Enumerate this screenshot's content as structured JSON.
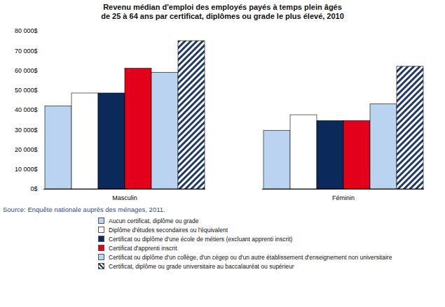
{
  "chart_data": {
    "type": "bar",
    "title": "Revenu médian d'emploi des employés payés à temps plein âgés de 25 à 64 ans par certificat, diplômes ou grade le plus élevé, 2010",
    "source": "Source: Enquête nationale auprès des ménages, 2011.",
    "categories": [
      "Masculin",
      "Féminin"
    ],
    "series": [
      {
        "name": "Aucun certificat, diplôme ou grade",
        "color": "#b9d3f0",
        "values": [
          42000,
          29500
        ]
      },
      {
        "name": "Diplôme d'études secondaires ou l'équivalent",
        "color": "#ffffff",
        "values": [
          48500,
          37500
        ]
      },
      {
        "name": "Certificat ou diplôme d'une école de métiers (excluant apprenti inscrit)",
        "color": "#0b2a5b",
        "values": [
          48500,
          34500
        ]
      },
      {
        "name": "Certificat d'apprenti inscrit",
        "color": "#e3001b",
        "values": [
          61000,
          34500
        ]
      },
      {
        "name": "Certificat ou diplôme d'un collège, d'un cégep ou d'un autre établissement d'enseignement non universitaire",
        "color": "#b9d3f0",
        "values": [
          59000,
          43000
        ]
      },
      {
        "name": "Certificat, diplôme ou grade universitaire au baccalauréat ou supérieur",
        "color": "#1f3a68",
        "values": [
          75000,
          62000
        ]
      }
    ],
    "ylim": [
      0,
      80000
    ],
    "yticks": [
      {
        "value": 0,
        "label": "0$"
      },
      {
        "value": 10000,
        "label": "10 000$"
      },
      {
        "value": 20000,
        "label": "20 000$"
      },
      {
        "value": 30000,
        "label": "30 000$"
      },
      {
        "value": 40000,
        "label": "40 000$"
      },
      {
        "value": 50000,
        "label": "50 000$"
      },
      {
        "value": 60000,
        "label": "60 000$"
      },
      {
        "value": 70000,
        "label": "70 000$"
      },
      {
        "value": 80000,
        "label": "80 000$"
      }
    ],
    "grid": false,
    "legend": "bottom"
  }
}
